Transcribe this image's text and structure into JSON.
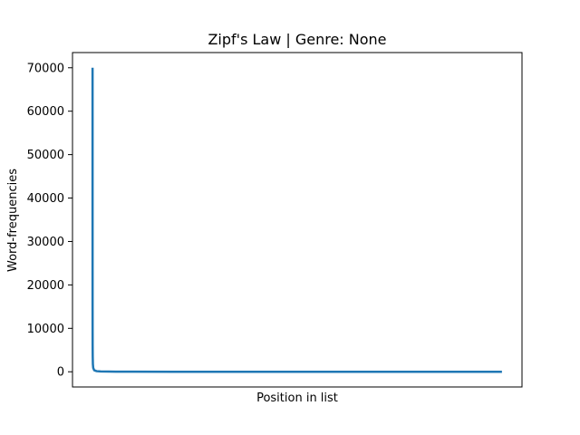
{
  "chart_data": {
    "type": "line",
    "title": "Zipf's Law | Genre: None",
    "xlabel": "Position in list",
    "ylabel": "Word-frequencies",
    "xticks_visible": false,
    "grid": false,
    "legend": "none",
    "ylim": [
      -3500,
      73500
    ],
    "yticks": [
      0,
      10000,
      20000,
      30000,
      40000,
      50000,
      60000,
      70000
    ],
    "series": [
      {
        "color": "#1f77b4",
        "x": [
          1,
          2,
          3,
          5,
          8,
          12,
          20,
          40,
          80,
          200,
          500,
          1000,
          2000,
          5000,
          10000,
          20000,
          30000,
          40000,
          50000
        ],
        "y": [
          70000,
          35000,
          23300,
          14000,
          8750,
          5800,
          3500,
          1750,
          875,
          350,
          140,
          70,
          35,
          14,
          7,
          3,
          2,
          2,
          1
        ]
      }
    ],
    "xlim": [
      -2450,
      52450
    ]
  }
}
